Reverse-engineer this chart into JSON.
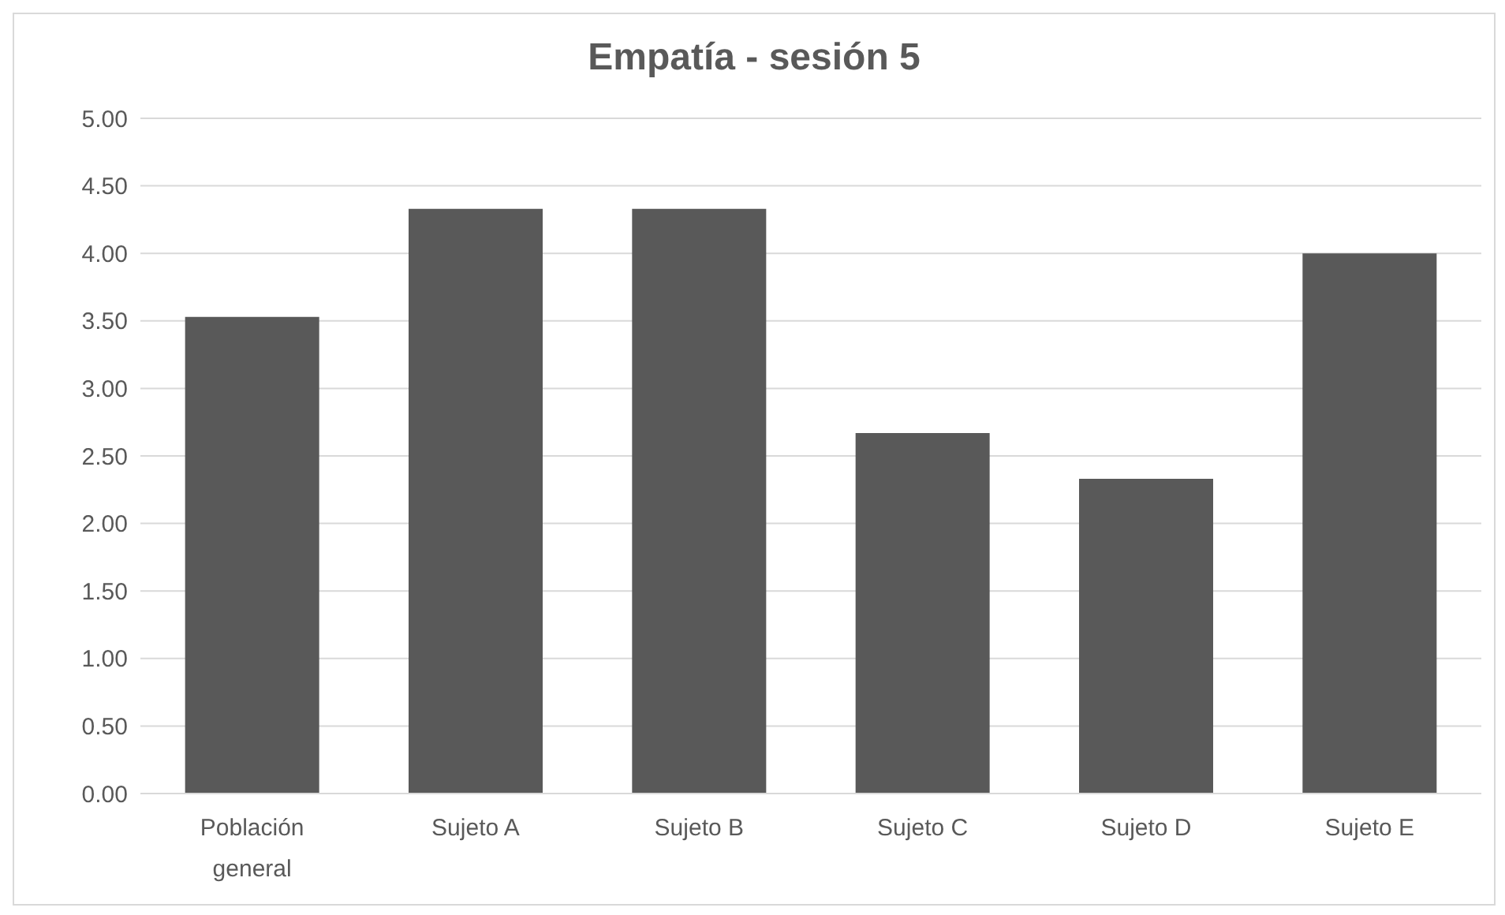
{
  "chart_data": {
    "type": "bar",
    "title": "Empatía - sesión 5",
    "categories": [
      "Población general",
      "Sujeto A",
      "Sujeto B",
      "Sujeto C",
      "Sujeto D",
      "Sujeto E"
    ],
    "values": [
      3.53,
      4.33,
      4.33,
      2.67,
      2.33,
      4.0
    ],
    "color": "#595959",
    "ylim": [
      0,
      5
    ],
    "yticks": [
      {
        "value": 0,
        "label": "0.00"
      },
      {
        "value": 0.5,
        "label": "0.50"
      },
      {
        "value": 1,
        "label": "1.00"
      },
      {
        "value": 1.5,
        "label": "1.50"
      },
      {
        "value": 2,
        "label": "2.00"
      },
      {
        "value": 2.5,
        "label": "2.50"
      },
      {
        "value": 3,
        "label": "3.00"
      },
      {
        "value": 3.5,
        "label": "3.50"
      },
      {
        "value": 4,
        "label": "4.00"
      },
      {
        "value": 4.5,
        "label": "4.50"
      },
      {
        "value": 5,
        "label": "5.00"
      }
    ],
    "grid": "y"
  }
}
